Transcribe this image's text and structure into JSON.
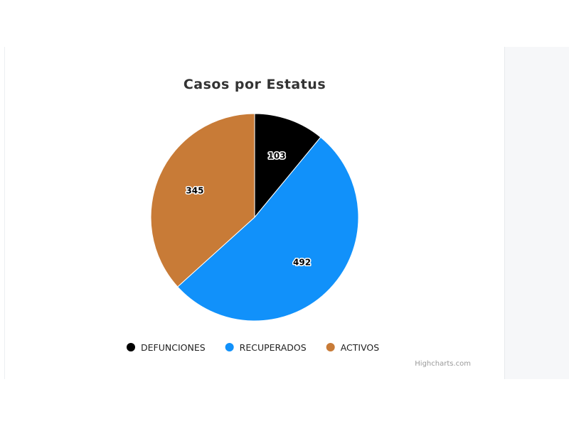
{
  "chart_data": {
    "type": "pie",
    "title": "Casos por Estatus",
    "categories": [
      "DEFUNCIONES",
      "RECUPERADOS",
      "ACTIVOS"
    ],
    "values": [
      103,
      492,
      345
    ],
    "colors": [
      "#000000",
      "#1191fa",
      "#c87b37"
    ],
    "data_labels": [
      "103",
      "492",
      "345"
    ],
    "legend_position": "bottom-center",
    "credits": "Highcharts.com"
  }
}
